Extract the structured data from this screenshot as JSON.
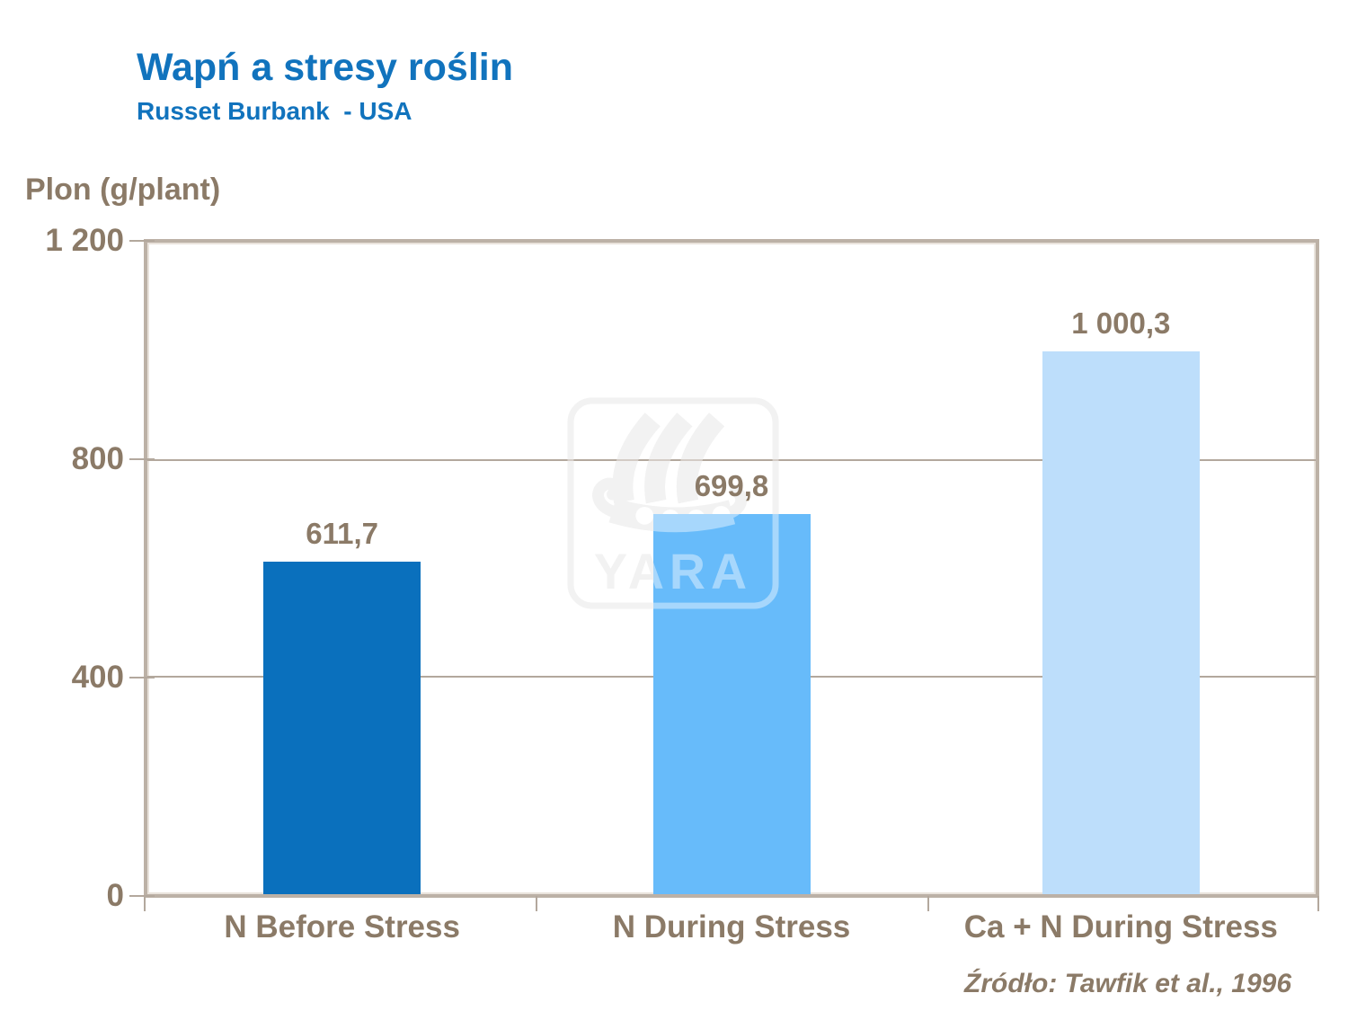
{
  "chart_data": {
    "type": "bar",
    "title": "Wapń a stresy roślin",
    "subtitle": "Russet Burbank  - USA",
    "ylabel": "Plon (g/plant)",
    "xlabel": "",
    "categories": [
      "N Before Stress",
      "N During Stress",
      "Ca + N During Stress"
    ],
    "values": [
      611.7,
      699.8,
      1000.3
    ],
    "value_labels": [
      "611,7",
      "699,8",
      "1 000,3"
    ],
    "bar_colors": [
      "#0A70BD",
      "#67BBFA",
      "#BDDEFB"
    ],
    "ylim": [
      0,
      1200
    ],
    "yticks": [
      0,
      400,
      800,
      1200
    ],
    "ytick_labels": [
      "0",
      "400",
      "800",
      "1 200"
    ],
    "grid": true,
    "legend": false,
    "source": "Źródło: Tawfik et al., 1996"
  },
  "watermark": {
    "text": "YARA",
    "color": "#E9E9E9"
  },
  "colors": {
    "title_blue": "#1173BD",
    "text_brown": "#8B7A67",
    "axis_tan": "#B3A89D",
    "plot_border": "#BCB1A6",
    "background": "#FFFFFF"
  }
}
